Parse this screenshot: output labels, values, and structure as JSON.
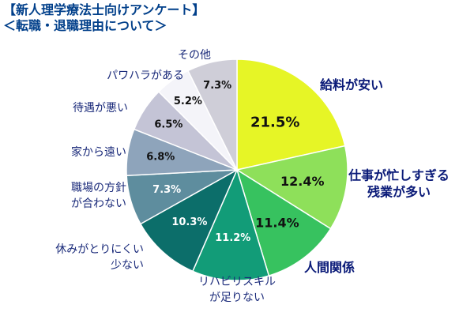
{
  "chart_data": {
    "type": "pie",
    "title": "【新人理学療法士向けアンケート】",
    "subtitle": "＜転職・退職理由について＞",
    "slices": [
      {
        "label": "給料が安い",
        "value": 21.5,
        "display": "21.5%",
        "color": "#e6f526",
        "text_color": "#111111",
        "label_emphasis": true
      },
      {
        "label": "仕事が忙しすぎる\n残業が多い",
        "value": 12.4,
        "display": "12.4%",
        "color": "#8ee05a",
        "text_color": "#111111",
        "label_emphasis": true
      },
      {
        "label": "人間関係",
        "value": 11.4,
        "display": "11.4%",
        "color": "#37c25f",
        "text_color": "#111111",
        "label_emphasis": true
      },
      {
        "label": "リハビリスキル\nが足りない",
        "value": 11.2,
        "display": "11.2%",
        "color": "#129c78",
        "text_color": "#ffffff",
        "label_emphasis": false
      },
      {
        "label": "休みがとりにくい\n少ない",
        "value": 10.3,
        "display": "10.3%",
        "color": "#0c6e6a",
        "text_color": "#ffffff",
        "label_emphasis": false
      },
      {
        "label": "職場の方針\nが合わない",
        "value": 7.3,
        "display": "7.3%",
        "color": "#5e8d9e",
        "text_color": "#ffffff",
        "label_emphasis": false
      },
      {
        "label": "家から遠い",
        "value": 6.8,
        "display": "6.8%",
        "color": "#8ea4bb",
        "text_color": "#111111",
        "label_emphasis": false
      },
      {
        "label": "待遇が悪い",
        "value": 6.5,
        "display": "6.5%",
        "color": "#c4c4d6",
        "text_color": "#111111",
        "label_emphasis": false
      },
      {
        "label": "パワハラがある",
        "value": 5.2,
        "display": "5.2%",
        "color": "#f4f4f9",
        "text_color": "#111111",
        "label_emphasis": false
      },
      {
        "label": "その他",
        "value": 7.3,
        "display": "7.3%",
        "color": "#cfced8",
        "text_color": "#111111",
        "label_emphasis": false
      }
    ]
  }
}
